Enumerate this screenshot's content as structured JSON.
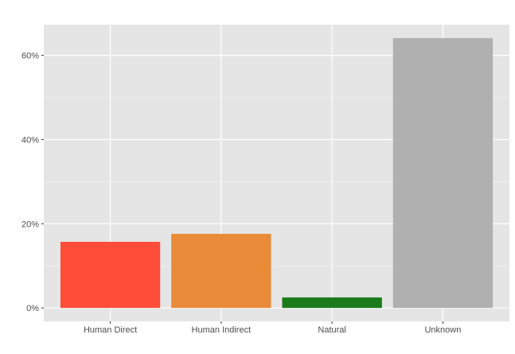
{
  "chart_data": {
    "type": "bar",
    "title": "",
    "xlabel": "",
    "ylabel": "",
    "categories": [
      "Human Direct",
      "Human Indirect",
      "Natural",
      "Unknown"
    ],
    "values": [
      15.7,
      17.6,
      2.5,
      64.1
    ],
    "colors": [
      "#ff4d3a",
      "#e98b39",
      "#1b7b1b",
      "#b0b0b0"
    ],
    "ylim": [
      -3.2,
      67.3
    ],
    "yticks": [
      0,
      20,
      40,
      60
    ],
    "ytick_labels": [
      "0%",
      "20%",
      "40%",
      "60%"
    ],
    "grid": true,
    "panel_background": "#e5e5e5",
    "legend": "none"
  }
}
